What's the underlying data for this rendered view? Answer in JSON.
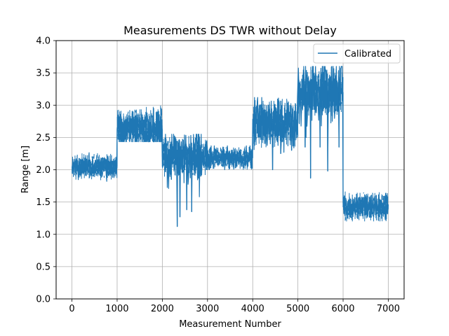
{
  "chart_data": {
    "type": "line",
    "title": "Measurements DS TWR without Delay",
    "xlabel": "Measurement Number",
    "ylabel": "Range [m]",
    "xlim": [
      -350,
      7350
    ],
    "ylim": [
      0.0,
      4.0
    ],
    "xticks": [
      0,
      1000,
      2000,
      3000,
      4000,
      5000,
      6000,
      7000
    ],
    "xtick_labels": [
      "0",
      "1000",
      "2000",
      "3000",
      "4000",
      "5000",
      "6000",
      "7000"
    ],
    "yticks": [
      0.0,
      0.5,
      1.0,
      1.5,
      2.0,
      2.5,
      3.0,
      3.5,
      4.0
    ],
    "ytick_labels": [
      "0.0",
      "0.5",
      "1.0",
      "1.5",
      "2.0",
      "2.5",
      "3.0",
      "3.5",
      "4.0"
    ],
    "grid": true,
    "legend_position": "top-right",
    "series": [
      {
        "name": "Calibrated",
        "color": "#1f77b4",
        "segments": [
          {
            "x_start": 0,
            "x_end": 1000,
            "mean": 2.05,
            "min": 1.82,
            "max": 2.27
          },
          {
            "x_start": 1000,
            "x_end": 2000,
            "mean": 2.63,
            "min": 2.43,
            "max": 3.0
          },
          {
            "x_start": 2000,
            "x_end": 3000,
            "mean": 2.2,
            "min": 1.12,
            "max": 2.55
          },
          {
            "x_start": 3000,
            "x_end": 4000,
            "mean": 2.18,
            "min": 2.0,
            "max": 2.37
          },
          {
            "x_start": 4000,
            "x_end": 5000,
            "mean": 2.72,
            "min": 2.0,
            "max": 3.12
          },
          {
            "x_start": 5000,
            "x_end": 6000,
            "mean": 3.2,
            "min": 1.87,
            "max": 3.6
          },
          {
            "x_start": 6000,
            "x_end": 7000,
            "mean": 1.42,
            "min": 1.2,
            "max": 1.67
          }
        ],
        "spikes": [
          {
            "x": 2330,
            "y": 1.12
          },
          {
            "x": 2390,
            "y": 1.27
          },
          {
            "x": 2540,
            "y": 1.38
          },
          {
            "x": 2650,
            "y": 1.35
          },
          {
            "x": 2200,
            "y": 1.85
          },
          {
            "x": 2850,
            "y": 1.9
          },
          {
            "x": 4440,
            "y": 2.0
          },
          {
            "x": 4620,
            "y": 2.25
          },
          {
            "x": 4860,
            "y": 2.3
          },
          {
            "x": 5160,
            "y": 2.35
          },
          {
            "x": 5280,
            "y": 1.87
          },
          {
            "x": 5490,
            "y": 2.35
          },
          {
            "x": 5660,
            "y": 1.98
          },
          {
            "x": 5910,
            "y": 2.35
          }
        ]
      }
    ]
  }
}
